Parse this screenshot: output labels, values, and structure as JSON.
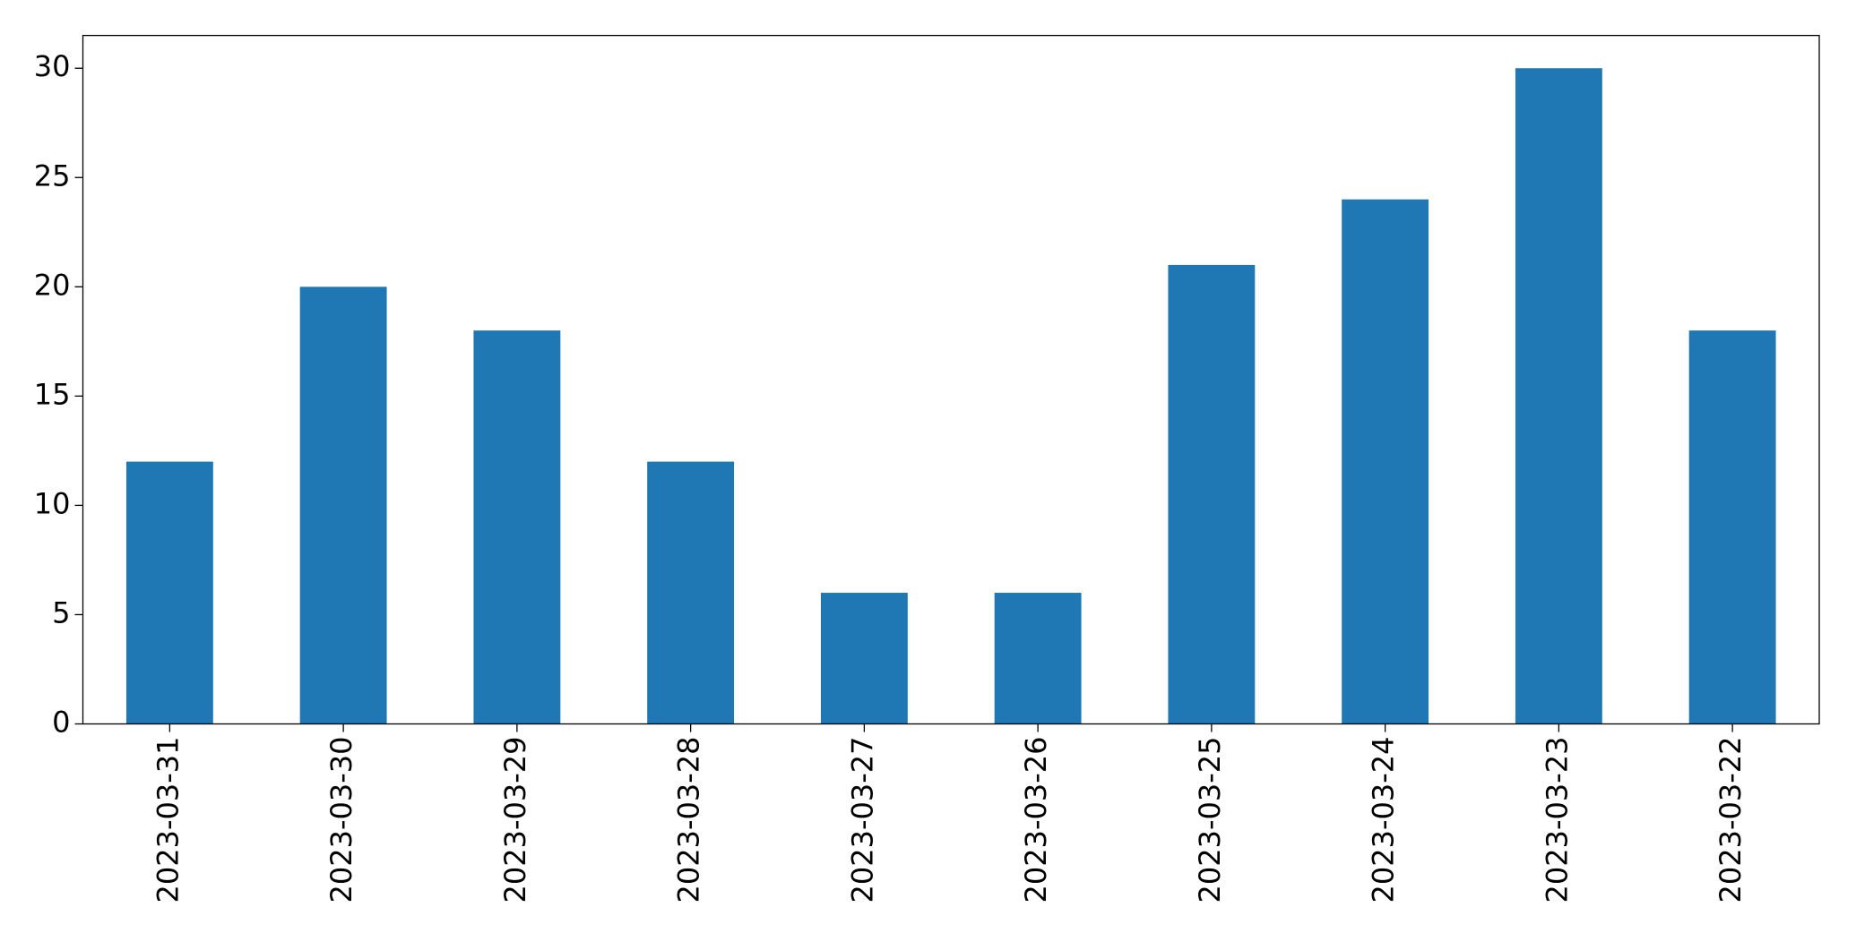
{
  "chart_data": {
    "type": "bar",
    "categories": [
      "2023-03-31",
      "2023-03-30",
      "2023-03-29",
      "2023-03-28",
      "2023-03-27",
      "2023-03-26",
      "2023-03-25",
      "2023-03-24",
      "2023-03-23",
      "2023-03-22"
    ],
    "values": [
      12,
      20,
      18,
      12,
      6,
      6,
      21,
      24,
      30,
      18
    ],
    "color": "#1f77b4",
    "ylim": [
      0,
      31.5
    ],
    "yticks": [
      0,
      5,
      10,
      15,
      20,
      25,
      30
    ],
    "grid": false
  }
}
